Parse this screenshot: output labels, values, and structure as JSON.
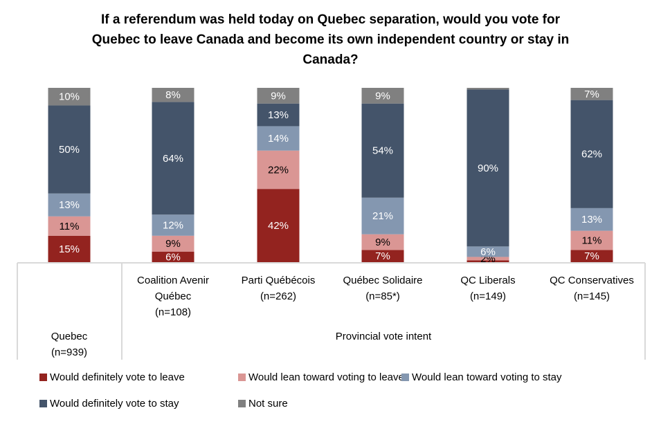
{
  "chart_data": {
    "type": "bar",
    "stacked": true,
    "orientation": "vertical",
    "title_lines": [
      "If a referendum was held today on Quebec separation, would you vote for",
      "Quebec to leave Canada and become its own independent country or stay in",
      "Canada?"
    ],
    "ylim": [
      0,
      100
    ],
    "categories": [
      {
        "lines": [
          "Quebec",
          "(n=939)"
        ]
      },
      {
        "lines": [
          "Coalition Avenir",
          "Québec",
          "(n=108)"
        ]
      },
      {
        "lines": [
          "Parti Québécois",
          "(n=262)"
        ]
      },
      {
        "lines": [
          "Québec Solidaire",
          "(n=85*)"
        ]
      },
      {
        "lines": [
          "QC Liberals",
          "(n=149)"
        ]
      },
      {
        "lines": [
          "QC Conservatives",
          "(n=145)"
        ]
      }
    ],
    "group_label": "Provincial vote intent",
    "series": [
      {
        "name": "Would definitely vote to leave",
        "color": "#93231F",
        "label_color": "#FFFFFF",
        "values": [
          15,
          6,
          42,
          7,
          1,
          7
        ],
        "labels": [
          "15%",
          "6%",
          "42%",
          "7%",
          "",
          "7%"
        ]
      },
      {
        "name": "Would lean toward voting to leave",
        "color": "#DA9694",
        "label_color": "#000000",
        "values": [
          11,
          9,
          22,
          9,
          2,
          11
        ],
        "labels": [
          "11%",
          "9%",
          "22%",
          "9%",
          "2%",
          "11%"
        ]
      },
      {
        "name": "Would lean toward voting to stay",
        "color": "#8497B0",
        "label_color": "#FFFFFF",
        "values": [
          13,
          12,
          14,
          21,
          6,
          13
        ],
        "labels": [
          "13%",
          "12%",
          "14%",
          "21%",
          "6%",
          "13%"
        ]
      },
      {
        "name": "Would definitely vote to stay",
        "color": "#44546A",
        "label_color": "#FFFFFF",
        "values": [
          50,
          64,
          13,
          54,
          90,
          62
        ],
        "labels": [
          "50%",
          "64%",
          "13%",
          "54%",
          "90%",
          "62%"
        ]
      },
      {
        "name": "Not sure",
        "color": "#808080",
        "label_color": "#FFFFFF",
        "values": [
          10,
          8,
          9,
          9,
          1,
          7
        ],
        "labels": [
          "10%",
          "8%",
          "9%",
          "9%",
          "",
          "7%"
        ]
      }
    ],
    "legend_position": "bottom",
    "grid": false
  }
}
